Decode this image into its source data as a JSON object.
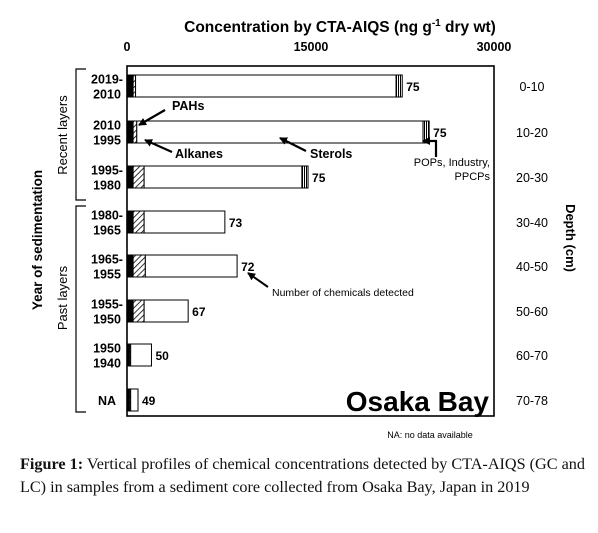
{
  "chart_data": {
    "type": "bar",
    "title": "Concentration by CTA-AIQS (ng g-1 dry wt)",
    "title_main": "Concentration by CTA-AIQS (ng g",
    "title_sup": "-1",
    "title_tail": " dry wt)",
    "orientation": "horizontal",
    "stacked": true,
    "xlim": [
      0,
      30000
    ],
    "x_ticks": [
      0,
      15000,
      30000
    ],
    "x_tick_labels": [
      "0",
      "15000",
      "30000"
    ],
    "ylabel": "Year of sedimentation",
    "depth_axis_label": "Depth (cm)",
    "group_labels": [
      "Recent layers",
      "Past layers"
    ],
    "categories": [
      {
        "year": [
          "2019-",
          "2010"
        ],
        "depth": "0-10",
        "count": "75"
      },
      {
        "year": [
          "2010",
          "1995"
        ],
        "depth": "10-20",
        "count": "75"
      },
      {
        "year": [
          "1995-",
          "1980"
        ],
        "depth": "20-30",
        "count": "75"
      },
      {
        "year": [
          "1980-",
          "1965"
        ],
        "depth": "30-40",
        "count": "73"
      },
      {
        "year": [
          "1965-",
          "1955"
        ],
        "depth": "40-50",
        "count": "72"
      },
      {
        "year": [
          "1955-",
          "1950"
        ],
        "depth": "50-60",
        "count": "67"
      },
      {
        "year": [
          "1950",
          "1940"
        ],
        "depth": "60-70",
        "count": "50"
      },
      {
        "year": [
          "NA"
        ],
        "depth": "70-78",
        "count": "49"
      }
    ],
    "series": [
      {
        "name": "PAHs",
        "color": "#000000",
        "values": [
          500,
          500,
          500,
          500,
          500,
          500,
          200,
          200
        ]
      },
      {
        "name": "Alkanes",
        "color": "#d8d8d8",
        "values": [
          200,
          300,
          900,
          900,
          1000,
          900,
          100,
          100
        ]
      },
      {
        "name": "Sterols",
        "color": "#ffffff",
        "values": [
          21300,
          23400,
          12900,
          6600,
          7500,
          3600,
          1700,
          600
        ]
      },
      {
        "name": "POPs, Industry, PPCPs",
        "color": "#ffffff",
        "values": [
          500,
          500,
          500,
          0,
          0,
          0,
          0,
          0
        ]
      }
    ],
    "annotations": {
      "pahs": "PAHs",
      "alkanes": "Alkanes",
      "sterols": "Sterols",
      "pops_line1": "POPs, Industry,",
      "pops_line2": "PPCPs",
      "num_chem": "Number of chemicals detected",
      "location": "Osaka Bay",
      "na_note": "NA: no data available"
    }
  },
  "caption": {
    "label": "Figure 1:",
    "text": " Vertical profiles of chemical concentrations detected by CTA-AIQS (GC and LC) in samples from a sediment core collected from Osaka Bay, Japan in 2019"
  }
}
